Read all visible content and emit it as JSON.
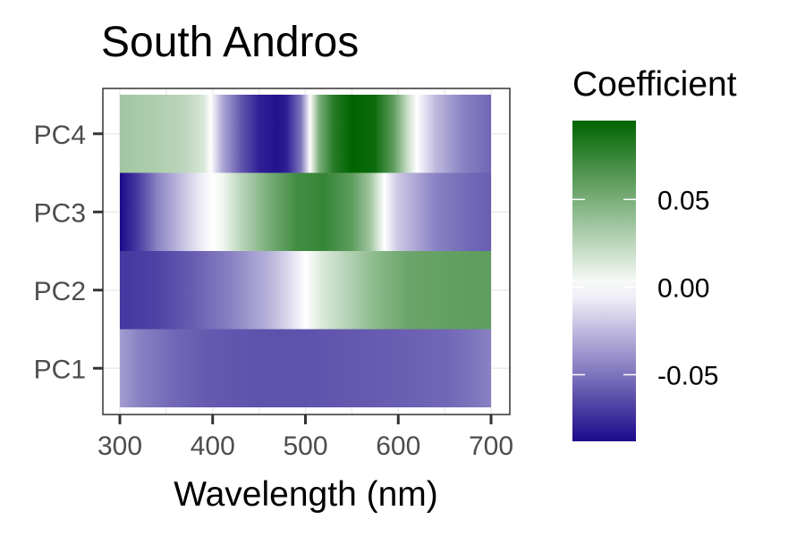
{
  "chart_data": {
    "type": "heatmap",
    "title": "South Andros",
    "xlabel": "Wavelength (nm)",
    "ylabel": "",
    "xlim": [
      300,
      700
    ],
    "x_ticks": [
      300,
      400,
      500,
      600,
      700
    ],
    "categories": [
      "PC1",
      "PC2",
      "PC3",
      "PC4"
    ],
    "series": [
      {
        "name": "PC1",
        "points": [
          [
            300,
            -0.035
          ],
          [
            320,
            -0.045
          ],
          [
            340,
            -0.05
          ],
          [
            360,
            -0.055
          ],
          [
            400,
            -0.06
          ],
          [
            450,
            -0.062
          ],
          [
            500,
            -0.062
          ],
          [
            550,
            -0.06
          ],
          [
            600,
            -0.058
          ],
          [
            650,
            -0.055
          ],
          [
            680,
            -0.05
          ],
          [
            700,
            -0.045
          ]
        ]
      },
      {
        "name": "PC2",
        "points": [
          [
            300,
            -0.072
          ],
          [
            340,
            -0.068
          ],
          [
            380,
            -0.058
          ],
          [
            420,
            -0.045
          ],
          [
            460,
            -0.028
          ],
          [
            480,
            -0.015
          ],
          [
            500,
            0.0
          ],
          [
            520,
            0.015
          ],
          [
            550,
            0.03
          ],
          [
            580,
            0.045
          ],
          [
            610,
            0.055
          ],
          [
            650,
            0.058
          ],
          [
            700,
            0.06
          ]
        ]
      },
      {
        "name": "PC3",
        "points": [
          [
            300,
            -0.09
          ],
          [
            320,
            -0.07
          ],
          [
            340,
            -0.045
          ],
          [
            370,
            -0.02
          ],
          [
            390,
            -0.005
          ],
          [
            400,
            0.0
          ],
          [
            410,
            0.005
          ],
          [
            430,
            0.025
          ],
          [
            460,
            0.05
          ],
          [
            490,
            0.07
          ],
          [
            520,
            0.075
          ],
          [
            550,
            0.06
          ],
          [
            570,
            0.035
          ],
          [
            585,
            0.0
          ],
          [
            600,
            -0.02
          ],
          [
            640,
            -0.045
          ],
          [
            680,
            -0.055
          ],
          [
            700,
            -0.058
          ]
        ]
      },
      {
        "name": "PC4",
        "points": [
          [
            300,
            0.035
          ],
          [
            340,
            0.03
          ],
          [
            370,
            0.025
          ],
          [
            390,
            0.015
          ],
          [
            398,
            0.0
          ],
          [
            410,
            -0.03
          ],
          [
            430,
            -0.06
          ],
          [
            450,
            -0.08
          ],
          [
            470,
            -0.085
          ],
          [
            480,
            -0.08
          ],
          [
            495,
            -0.05
          ],
          [
            505,
            0.0
          ],
          [
            515,
            0.05
          ],
          [
            530,
            0.08
          ],
          [
            550,
            0.095
          ],
          [
            575,
            0.09
          ],
          [
            595,
            0.06
          ],
          [
            610,
            0.02
          ],
          [
            620,
            0.0
          ],
          [
            640,
            -0.025
          ],
          [
            670,
            -0.045
          ],
          [
            700,
            -0.055
          ]
        ]
      }
    ],
    "color_scale": {
      "title": "Coefficient",
      "min": -0.088,
      "max": 0.095,
      "tick_values": [
        0.05,
        0.0,
        -0.05
      ],
      "tick_labels": [
        "0.05",
        "0.00",
        "-0.05"
      ],
      "colors": [
        "#1b0a8a",
        "#ffffff",
        "#006400"
      ]
    },
    "grid": true,
    "legend_position": "right"
  }
}
